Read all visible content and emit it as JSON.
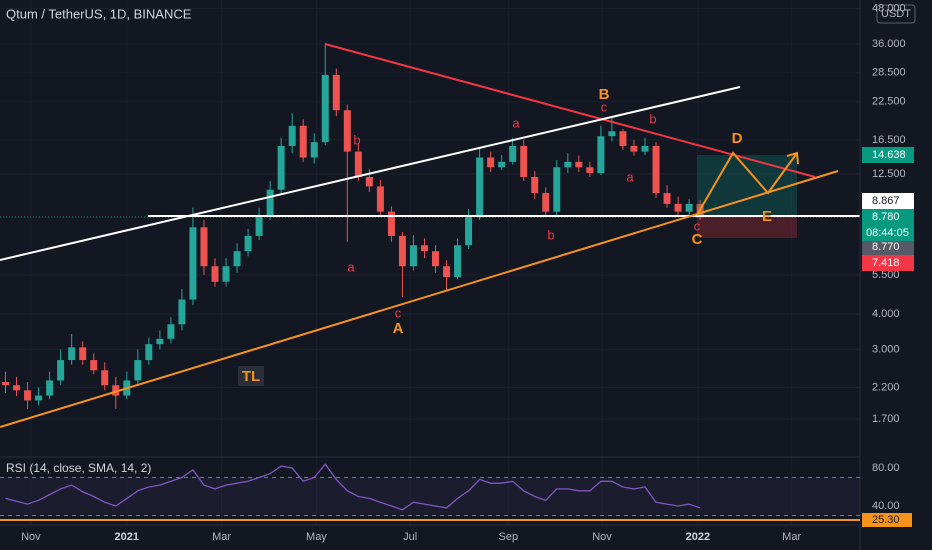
{
  "chart_data": [
    {
      "type": "candlestick",
      "title": "Qtum / TetherUS, 1D, BINANCE",
      "currency": "USDT",
      "log_scale": true,
      "up_color": "#26a69a",
      "down_color": "#ef5350",
      "open": [
        2.3,
        2.24,
        2.15,
        1.98,
        2.06,
        2.33,
        2.75,
        3.05,
        2.75,
        2.53,
        2.24,
        2.06,
        2.33,
        2.75,
        3.13,
        3.27,
        3.68,
        4.5,
        8.1,
        5.9,
        5.2,
        5.9,
        6.67,
        7.55,
        8.9,
        11,
        15.7,
        18.5,
        14.3,
        16.2,
        28,
        21,
        15,
        12.2,
        11.3,
        9.2,
        7.55,
        5.9,
        7,
        6.67,
        5.9,
        5.4,
        7,
        8.8,
        14.3,
        13.2,
        13.8,
        15.7,
        12.2,
        10.7,
        9.2,
        13.2,
        13.8,
        13.2,
        12.6,
        17,
        17.7,
        15.7,
        15,
        15.7,
        10.7,
        9.8,
        9.2,
        9.8
      ],
      "high": [
        2.5,
        2.4,
        2.3,
        2.2,
        2.5,
        3.0,
        3.4,
        3.2,
        2.9,
        2.7,
        2.4,
        2.5,
        3.0,
        3.3,
        3.5,
        3.9,
        4.9,
        9.5,
        8.6,
        6.3,
        6.3,
        7.1,
        8.0,
        9.5,
        11.8,
        16.8,
        20.5,
        19.5,
        17.4,
        36.2,
        29.5,
        22,
        16,
        13,
        11.9,
        9.6,
        7.8,
        7.6,
        7.4,
        7,
        6.2,
        7.4,
        9.4,
        15.5,
        15,
        14.6,
        16.8,
        16.5,
        12.8,
        11.2,
        14,
        14.8,
        14.5,
        13.8,
        18.5,
        19.8,
        18,
        16.5,
        16.8,
        16.2,
        11.4,
        10.4,
        10.2,
        10.1
      ],
      "low": [
        2.1,
        2.05,
        1.85,
        1.9,
        2.0,
        2.25,
        2.65,
        2.65,
        2.45,
        2.15,
        1.85,
        2.0,
        2.25,
        2.65,
        3.0,
        3.15,
        3.5,
        4.3,
        5.5,
        5.0,
        5.0,
        5.6,
        6.4,
        7.3,
        8.6,
        10.6,
        14.8,
        13.8,
        13.6,
        15.8,
        20,
        7.2,
        11.8,
        10.8,
        8.8,
        7.2,
        4.6,
        5.7,
        6.3,
        5.6,
        4.8,
        5.3,
        6.8,
        8.6,
        12.7,
        12.9,
        13.5,
        11.8,
        10.2,
        8.8,
        8.9,
        12.6,
        12.7,
        12.2,
        12.4,
        16.3,
        15.2,
        14.5,
        14.6,
        10.3,
        9.5,
        8.8,
        8.9,
        8.6
      ],
      "close": [
        2.24,
        2.15,
        1.98,
        2.06,
        2.33,
        2.75,
        3.05,
        2.75,
        2.53,
        2.24,
        2.06,
        2.33,
        2.75,
        3.13,
        3.27,
        3.68,
        4.5,
        8.1,
        5.9,
        5.2,
        5.9,
        6.67,
        7.55,
        8.9,
        11,
        15.7,
        18.5,
        14.3,
        16.2,
        28,
        21,
        15,
        12.2,
        11.3,
        9.2,
        7.55,
        5.9,
        7,
        6.67,
        5.9,
        5.4,
        7,
        8.8,
        14.3,
        13.2,
        13.8,
        15.7,
        12.2,
        10.7,
        9.2,
        13.2,
        13.8,
        13.2,
        12.6,
        17,
        17.7,
        15.7,
        15,
        15.7,
        10.7,
        9.8,
        9.2,
        9.8,
        8.78
      ],
      "ylim": [
        1.27,
        51.5
      ],
      "yticks": [
        {
          "value": 48,
          "label": "48.000"
        },
        {
          "value": 36,
          "label": "36.000"
        },
        {
          "value": 28.5,
          "label": "28.500"
        },
        {
          "value": 22.5,
          "label": "22.500"
        },
        {
          "value": 16.5,
          "label": "16.500"
        },
        {
          "value": 12.5,
          "label": "12.500"
        },
        {
          "value": 5.5,
          "label": "5.500"
        },
        {
          "value": 4,
          "label": "4.000"
        },
        {
          "value": 3,
          "label": "3.000"
        },
        {
          "value": 2.2,
          "label": "2.200"
        },
        {
          "value": 1.7,
          "label": "1.700"
        }
      ],
      "xlim": [
        0,
        78
      ],
      "xticks": [
        {
          "value": 2.8,
          "label": "Nov"
        },
        {
          "value": 11.5,
          "label": "2021"
        },
        {
          "value": 20.1,
          "label": "Mar"
        },
        {
          "value": 28.7,
          "label": "May"
        },
        {
          "value": 37.2,
          "label": "Jul"
        },
        {
          "value": 46.1,
          "label": "Sep"
        },
        {
          "value": 54.6,
          "label": "Nov"
        },
        {
          "value": 63.3,
          "label": "2022"
        },
        {
          "value": 71.8,
          "label": "Mar"
        }
      ],
      "price_labels": [
        {
          "value": 14.638,
          "label": "14.638",
          "color": "#089981"
        },
        {
          "value": 8.867,
          "label": "8.867",
          "color": "#ffffff"
        },
        {
          "value": 8.78,
          "label": "8.780",
          "color": "#089981"
        },
        {
          "value": 8.77,
          "label": "8.770",
          "color": "#555a66"
        },
        {
          "value": 7.418,
          "label": "7.418",
          "color": "#f23645"
        }
      ],
      "countdown": "08:44:05",
      "annotations": [
        {
          "text": "a"
        },
        {
          "text": "b"
        },
        {
          "text": "c"
        },
        {
          "text": "A"
        },
        {
          "text": "a"
        },
        {
          "text": "b"
        },
        {
          "text": "B"
        },
        {
          "text": "c"
        },
        {
          "text": "b"
        },
        {
          "text": "a"
        },
        {
          "text": "c"
        },
        {
          "text": "C"
        },
        {
          "text": "D"
        },
        {
          "text": "E"
        },
        {
          "text": "TL"
        }
      ]
    },
    {
      "type": "line",
      "title": "RSI (14, close, SMA, 14, 2)",
      "color": "#7e57c2",
      "values": [
        48,
        45,
        42,
        46,
        52,
        58,
        62,
        55,
        50,
        44,
        40,
        48,
        56,
        60,
        62,
        66,
        70,
        78,
        62,
        58,
        62,
        64,
        66,
        70,
        74,
        82,
        80,
        66,
        70,
        84,
        68,
        56,
        50,
        48,
        44,
        40,
        36,
        44,
        42,
        40,
        38,
        48,
        56,
        68,
        64,
        64,
        66,
        56,
        50,
        46,
        58,
        58,
        56,
        56,
        66,
        66,
        60,
        58,
        60,
        44,
        42,
        40,
        42,
        38
      ],
      "ylim": [
        23.2,
        90.5
      ],
      "yticks": [
        {
          "value": 80,
          "label": "80.00"
        },
        {
          "value": 40,
          "label": "40.00"
        }
      ],
      "bands": [
        70,
        30
      ],
      "level": {
        "value": 25.3,
        "label": "25.30",
        "color": "#f7931a"
      }
    }
  ]
}
